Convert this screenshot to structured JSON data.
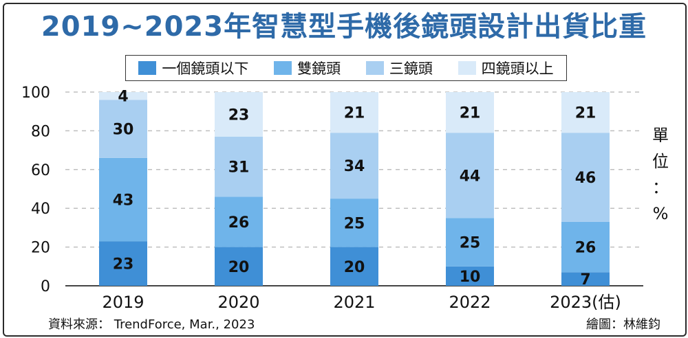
{
  "chart_data": {
    "type": "bar",
    "stacked": true,
    "title": "2019~2023年智慧型手機後鏡頭設計出貨比重",
    "unit_label": "單位：%",
    "categories": [
      "2019",
      "2020",
      "2021",
      "2022",
      "2023(估)"
    ],
    "series": [
      {
        "name": "一個鏡頭以下",
        "color": "#3f8fd6",
        "values": [
          23,
          20,
          20,
          10,
          7
        ]
      },
      {
        "name": "雙鏡頭",
        "color": "#6fb4ea",
        "values": [
          43,
          26,
          25,
          25,
          26
        ]
      },
      {
        "name": "三鏡頭",
        "color": "#a9cff1",
        "values": [
          30,
          31,
          34,
          44,
          46
        ]
      },
      {
        "name": "四鏡頭以上",
        "color": "#d9eaf9",
        "values": [
          4,
          23,
          21,
          21,
          21
        ]
      }
    ],
    "ylim": [
      0,
      100
    ],
    "yticks": [
      "0",
      "20",
      "40",
      "60",
      "80",
      "100"
    ],
    "grid": true,
    "legend": "top",
    "source": "資料來源： TrendForce, Mar., 2023",
    "credit": "繪圖：林維鈞"
  }
}
